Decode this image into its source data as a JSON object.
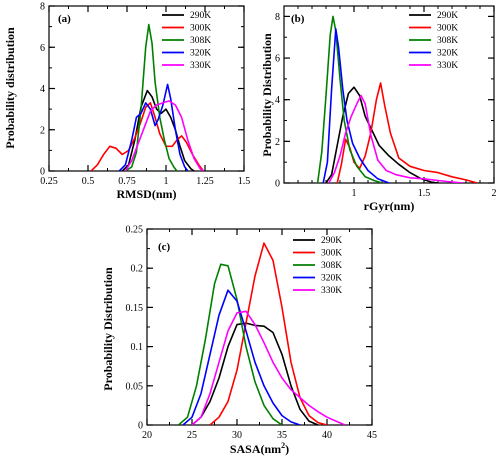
{
  "chart_data": [
    {
      "panel_label": "(a)",
      "type": "line",
      "xlabel": "RMSD(nm)",
      "ylabel": "Probability distribution",
      "xlim": [
        0.25,
        1.5
      ],
      "ylim": [
        0,
        8
      ],
      "xticks": [
        "0.25",
        "0.5",
        "0.75",
        "1",
        "1.25",
        "1.5"
      ],
      "xtick_values": [
        0.25,
        0.5,
        0.75,
        1.0,
        1.25,
        1.5
      ],
      "yticks": [
        "0",
        "2",
        "4",
        "6",
        "8"
      ],
      "ytick_values": [
        0,
        2,
        4,
        6,
        8
      ],
      "x_minor_step": 0.125,
      "y_minor_step": 1,
      "legend_position": "top-right",
      "series": [
        {
          "name": "290K",
          "color": "#000000",
          "points": [
            [
              0.72,
              0
            ],
            [
              0.76,
              0.3
            ],
            [
              0.8,
              1.5
            ],
            [
              0.84,
              3.1
            ],
            [
              0.88,
              3.9
            ],
            [
              0.91,
              3.6
            ],
            [
              0.94,
              3.0
            ],
            [
              0.97,
              2.8
            ],
            [
              1.0,
              3.0
            ],
            [
              1.03,
              2.6
            ],
            [
              1.06,
              2.0
            ],
            [
              1.09,
              1.2
            ],
            [
              1.12,
              0.5
            ],
            [
              1.16,
              0.1
            ],
            [
              1.18,
              0
            ]
          ]
        },
        {
          "name": "300K",
          "color": "#ff0000",
          "points": [
            [
              0.52,
              0
            ],
            [
              0.56,
              0.3
            ],
            [
              0.6,
              0.8
            ],
            [
              0.64,
              1.2
            ],
            [
              0.68,
              1.1
            ],
            [
              0.72,
              0.8
            ],
            [
              0.76,
              1.0
            ],
            [
              0.8,
              1.6
            ],
            [
              0.84,
              2.4
            ],
            [
              0.87,
              3.1
            ],
            [
              0.9,
              3.3
            ],
            [
              0.93,
              2.6
            ],
            [
              0.96,
              1.8
            ],
            [
              1.0,
              1.2
            ],
            [
              1.04,
              1.2
            ],
            [
              1.07,
              1.5
            ],
            [
              1.1,
              1.7
            ],
            [
              1.13,
              1.4
            ],
            [
              1.17,
              0.8
            ],
            [
              1.21,
              0.3
            ],
            [
              1.24,
              0
            ]
          ]
        },
        {
          "name": "308K",
          "color": "#008000",
          "points": [
            [
              0.74,
              0
            ],
            [
              0.78,
              0.2
            ],
            [
              0.81,
              0.9
            ],
            [
              0.84,
              3.0
            ],
            [
              0.87,
              6.0
            ],
            [
              0.89,
              7.1
            ],
            [
              0.91,
              6.2
            ],
            [
              0.93,
              4.3
            ],
            [
              0.96,
              2.6
            ],
            [
              0.99,
              1.5
            ],
            [
              1.02,
              0.6
            ],
            [
              1.05,
              0.2
            ],
            [
              1.07,
              0
            ]
          ]
        },
        {
          "name": "320K",
          "color": "#0000ff",
          "points": [
            [
              0.7,
              0
            ],
            [
              0.74,
              0.3
            ],
            [
              0.78,
              1.5
            ],
            [
              0.81,
              2.6
            ],
            [
              0.84,
              2.8
            ],
            [
              0.87,
              3.3
            ],
            [
              0.9,
              3.0
            ],
            [
              0.93,
              2.2
            ],
            [
              0.95,
              2.5
            ],
            [
              0.98,
              3.2
            ],
            [
              1.01,
              4.2
            ],
            [
              1.03,
              3.5
            ],
            [
              1.06,
              2.0
            ],
            [
              1.09,
              0.8
            ],
            [
              1.12,
              0.2
            ],
            [
              1.14,
              0
            ]
          ]
        },
        {
          "name": "330K",
          "color": "#ff00ff",
          "points": [
            [
              0.74,
              0
            ],
            [
              0.78,
              0.5
            ],
            [
              0.82,
              1.3
            ],
            [
              0.86,
              2.1
            ],
            [
              0.9,
              2.9
            ],
            [
              0.94,
              3.2
            ],
            [
              0.98,
              3.3
            ],
            [
              1.02,
              3.4
            ],
            [
              1.06,
              3.2
            ],
            [
              1.1,
              2.6
            ],
            [
              1.14,
              1.5
            ],
            [
              1.18,
              0.6
            ],
            [
              1.22,
              0.1
            ],
            [
              1.24,
              0
            ]
          ]
        }
      ]
    },
    {
      "panel_label": "(b)",
      "type": "line",
      "xlabel": "rGyr(nm)",
      "ylabel": "Probability Distribution",
      "xlim": [
        0.5,
        2.0
      ],
      "ylim": [
        0,
        8.5
      ],
      "xticks": [
        "1",
        "1.5",
        "2"
      ],
      "xtick_values": [
        1.0,
        1.5,
        2.0
      ],
      "yticks": [
        "0",
        "2",
        "4",
        "6",
        "8"
      ],
      "ytick_values": [
        0,
        2,
        4,
        6,
        8
      ],
      "x_minor_step": 0.1,
      "y_minor_step": 1,
      "legend_position": "top-right",
      "series": [
        {
          "name": "290K",
          "color": "#000000",
          "points": [
            [
              0.8,
              0
            ],
            [
              0.84,
              0.4
            ],
            [
              0.88,
              1.8
            ],
            [
              0.92,
              3.2
            ],
            [
              0.96,
              4.3
            ],
            [
              1.0,
              4.6
            ],
            [
              1.04,
              4.2
            ],
            [
              1.08,
              3.2
            ],
            [
              1.13,
              2.5
            ],
            [
              1.18,
              1.8
            ],
            [
              1.25,
              1.3
            ],
            [
              1.32,
              0.9
            ],
            [
              1.4,
              0.5
            ],
            [
              1.48,
              0.2
            ],
            [
              1.55,
              0.05
            ],
            [
              1.6,
              0
            ]
          ]
        },
        {
          "name": "300K",
          "color": "#ff0000",
          "points": [
            [
              0.88,
              0
            ],
            [
              0.91,
              0.9
            ],
            [
              0.94,
              2.1
            ],
            [
              0.97,
              1.7
            ],
            [
              1.0,
              1.0
            ],
            [
              1.04,
              0.7
            ],
            [
              1.08,
              1.3
            ],
            [
              1.12,
              2.4
            ],
            [
              1.16,
              4.0
            ],
            [
              1.19,
              4.8
            ],
            [
              1.22,
              3.7
            ],
            [
              1.26,
              2.4
            ],
            [
              1.32,
              1.2
            ],
            [
              1.4,
              0.8
            ],
            [
              1.5,
              0.6
            ],
            [
              1.6,
              0.5
            ],
            [
              1.7,
              0.3
            ],
            [
              1.8,
              0.15
            ],
            [
              1.88,
              0
            ]
          ]
        },
        {
          "name": "308K",
          "color": "#008000",
          "points": [
            [
              0.74,
              0
            ],
            [
              0.77,
              1.5
            ],
            [
              0.8,
              4.2
            ],
            [
              0.83,
              7.1
            ],
            [
              0.85,
              8.0
            ],
            [
              0.87,
              7.3
            ],
            [
              0.9,
              5.0
            ],
            [
              0.93,
              3.0
            ],
            [
              0.97,
              1.6
            ],
            [
              1.02,
              0.8
            ],
            [
              1.08,
              0.3
            ],
            [
              1.15,
              0.1
            ],
            [
              1.2,
              0
            ]
          ]
        },
        {
          "name": "320K",
          "color": "#0000ff",
          "points": [
            [
              0.78,
              0
            ],
            [
              0.81,
              1.0
            ],
            [
              0.84,
              4.5
            ],
            [
              0.87,
              7.4
            ],
            [
              0.89,
              6.5
            ],
            [
              0.92,
              4.5
            ],
            [
              0.95,
              3.0
            ],
            [
              0.99,
              1.9
            ],
            [
              1.04,
              1.2
            ],
            [
              1.1,
              0.6
            ],
            [
              1.17,
              0.2
            ],
            [
              1.25,
              0
            ]
          ]
        },
        {
          "name": "330K",
          "color": "#ff00ff",
          "points": [
            [
              0.82,
              0
            ],
            [
              0.86,
              0.5
            ],
            [
              0.9,
              1.3
            ],
            [
              0.94,
              2.4
            ],
            [
              0.98,
              3.2
            ],
            [
              1.02,
              3.8
            ],
            [
              1.05,
              4.2
            ],
            [
              1.08,
              3.8
            ],
            [
              1.12,
              2.3
            ],
            [
              1.17,
              1.1
            ],
            [
              1.23,
              0.6
            ],
            [
              1.3,
              0.4
            ],
            [
              1.4,
              0.25
            ],
            [
              1.5,
              0.2
            ],
            [
              1.6,
              0.12
            ],
            [
              1.7,
              0.05
            ],
            [
              1.78,
              0
            ]
          ]
        }
      ]
    },
    {
      "panel_label": "(c)",
      "type": "line",
      "xlabel": "SASA(nm",
      "xlabel_sup": "2",
      "xlabel_end": ")",
      "ylabel": "Probability Distribution",
      "xlim": [
        20,
        45
      ],
      "ylim": [
        0,
        0.25
      ],
      "xticks": [
        "20",
        "25",
        "30",
        "35",
        "40",
        "45"
      ],
      "xtick_values": [
        20,
        25,
        30,
        35,
        40,
        45
      ],
      "yticks": [
        "0",
        "0.05",
        "0.1",
        "0.15",
        "0.2",
        "0.25"
      ],
      "ytick_values": [
        0,
        0.05,
        0.1,
        0.15,
        0.2,
        0.25
      ],
      "x_minor_step": 2.5,
      "y_minor_step": 0.025,
      "legend_position": "top-right",
      "series": [
        {
          "name": "290K",
          "color": "#000000",
          "points": [
            [
              25.0,
              0
            ],
            [
              26.0,
              0.01
            ],
            [
              27.0,
              0.03
            ],
            [
              28.0,
              0.06
            ],
            [
              29.0,
              0.1
            ],
            [
              30.0,
              0.128
            ],
            [
              31.0,
              0.13
            ],
            [
              32.0,
              0.127
            ],
            [
              33.0,
              0.126
            ],
            [
              34.0,
              0.118
            ],
            [
              35.0,
              0.09
            ],
            [
              36.0,
              0.05
            ],
            [
              37.0,
              0.02
            ],
            [
              38.0,
              0.005
            ],
            [
              39.0,
              0
            ]
          ]
        },
        {
          "name": "300K",
          "color": "#ff0000",
          "points": [
            [
              27.0,
              0
            ],
            [
              28.0,
              0.01
            ],
            [
              29.0,
              0.03
            ],
            [
              30.0,
              0.07
            ],
            [
              31.0,
              0.13
            ],
            [
              32.0,
              0.19
            ],
            [
              33.0,
              0.232
            ],
            [
              34.0,
              0.21
            ],
            [
              35.0,
              0.15
            ],
            [
              36.0,
              0.08
            ],
            [
              37.0,
              0.035
            ],
            [
              38.0,
              0.012
            ],
            [
              39.0,
              0.003
            ],
            [
              40.0,
              0
            ]
          ]
        },
        {
          "name": "308K",
          "color": "#008000",
          "points": [
            [
              23.5,
              0
            ],
            [
              24.5,
              0.01
            ],
            [
              25.5,
              0.05
            ],
            [
              26.5,
              0.11
            ],
            [
              27.5,
              0.18
            ],
            [
              28.2,
              0.205
            ],
            [
              29.0,
              0.203
            ],
            [
              30.0,
              0.16
            ],
            [
              31.0,
              0.1
            ],
            [
              32.0,
              0.055
            ],
            [
              33.0,
              0.025
            ],
            [
              34.0,
              0.008
            ],
            [
              35.0,
              0
            ]
          ]
        },
        {
          "name": "320K",
          "color": "#0000ff",
          "points": [
            [
              24.0,
              0
            ],
            [
              25.0,
              0.01
            ],
            [
              26.0,
              0.04
            ],
            [
              27.0,
              0.09
            ],
            [
              28.0,
              0.14
            ],
            [
              29.0,
              0.172
            ],
            [
              30.0,
              0.158
            ],
            [
              31.0,
              0.12
            ],
            [
              32.0,
              0.08
            ],
            [
              33.0,
              0.05
            ],
            [
              34.0,
              0.028
            ],
            [
              35.0,
              0.012
            ],
            [
              36.0,
              0.004
            ],
            [
              37.0,
              0
            ]
          ]
        },
        {
          "name": "330K",
          "color": "#ff00ff",
          "points": [
            [
              25.0,
              0
            ],
            [
              26.0,
              0.01
            ],
            [
              27.0,
              0.04
            ],
            [
              28.0,
              0.08
            ],
            [
              29.0,
              0.12
            ],
            [
              30.0,
              0.143
            ],
            [
              31.0,
              0.145
            ],
            [
              32.0,
              0.128
            ],
            [
              33.0,
              0.105
            ],
            [
              34.0,
              0.08
            ],
            [
              35.0,
              0.06
            ],
            [
              36.0,
              0.045
            ],
            [
              37.0,
              0.035
            ],
            [
              38.0,
              0.025
            ],
            [
              39.0,
              0.017
            ],
            [
              40.0,
              0.01
            ],
            [
              41.0,
              0.005
            ],
            [
              42.0,
              0
            ]
          ]
        }
      ]
    }
  ]
}
